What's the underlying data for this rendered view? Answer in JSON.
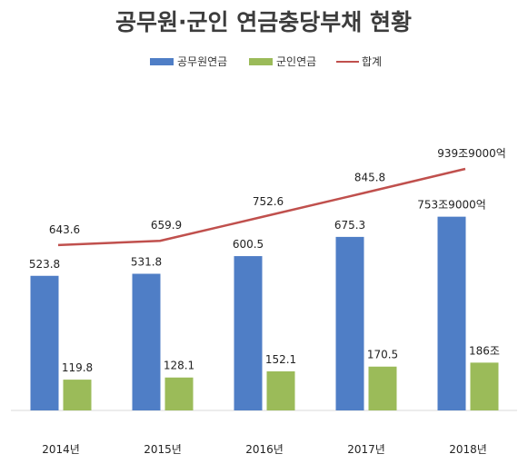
{
  "chart_data": {
    "type": "bar",
    "title": "공무원·군인 연금충당부채 현황",
    "categories": [
      "2014년",
      "2015년",
      "2016년",
      "2017년",
      "2018년"
    ],
    "series": [
      {
        "name": "공무원연금",
        "kind": "bar",
        "color": "#4f7ec6",
        "values": [
          523.8,
          531.8,
          600.5,
          675.3,
          753.9
        ],
        "labels": [
          "523.8",
          "531.8",
          "600.5",
          "675.3",
          "753조9000억"
        ]
      },
      {
        "name": "군인연금",
        "kind": "bar",
        "color": "#9bbb59",
        "values": [
          119.8,
          128.1,
          152.1,
          170.5,
          186
        ],
        "labels": [
          "119.8",
          "128.1",
          "152.1",
          "170.5",
          "186조"
        ]
      },
      {
        "name": "합계",
        "kind": "line",
        "color": "#c0504d",
        "values": [
          643.6,
          659.9,
          752.6,
          845.8,
          939.9
        ],
        "labels": [
          "643.6",
          "659.9",
          "752.6",
          "845.8",
          "939조9000억"
        ]
      }
    ],
    "ylim": [
      0,
      1000
    ],
    "grid": false,
    "legend": "top"
  }
}
